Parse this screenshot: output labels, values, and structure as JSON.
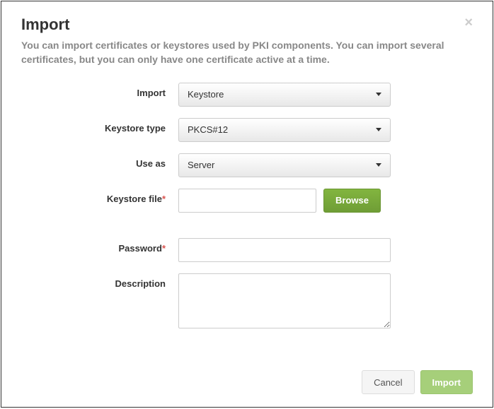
{
  "header": {
    "title": "Import",
    "subtitle": "You can import certificates or keystores used by PKI components. You can import several certificates, but you can only have one certificate active at a time.",
    "close_symbol": "×"
  },
  "form": {
    "import": {
      "label": "Import",
      "value": "Keystore"
    },
    "keystore_type": {
      "label": "Keystore type",
      "value": "PKCS#12"
    },
    "use_as": {
      "label": "Use as",
      "value": "Server"
    },
    "keystore_file": {
      "label": "Keystore file",
      "required": true,
      "value": "",
      "browse_label": "Browse"
    },
    "password": {
      "label": "Password",
      "required": true,
      "value": ""
    },
    "description": {
      "label": "Description",
      "value": ""
    }
  },
  "footer": {
    "cancel_label": "Cancel",
    "import_label": "Import"
  },
  "colors": {
    "accent_green": "#77a83a",
    "accent_green_light": "#a6cf7a",
    "required_red": "#d9534f",
    "subtitle_gray": "#888888",
    "border_gray": "#cccccc"
  }
}
